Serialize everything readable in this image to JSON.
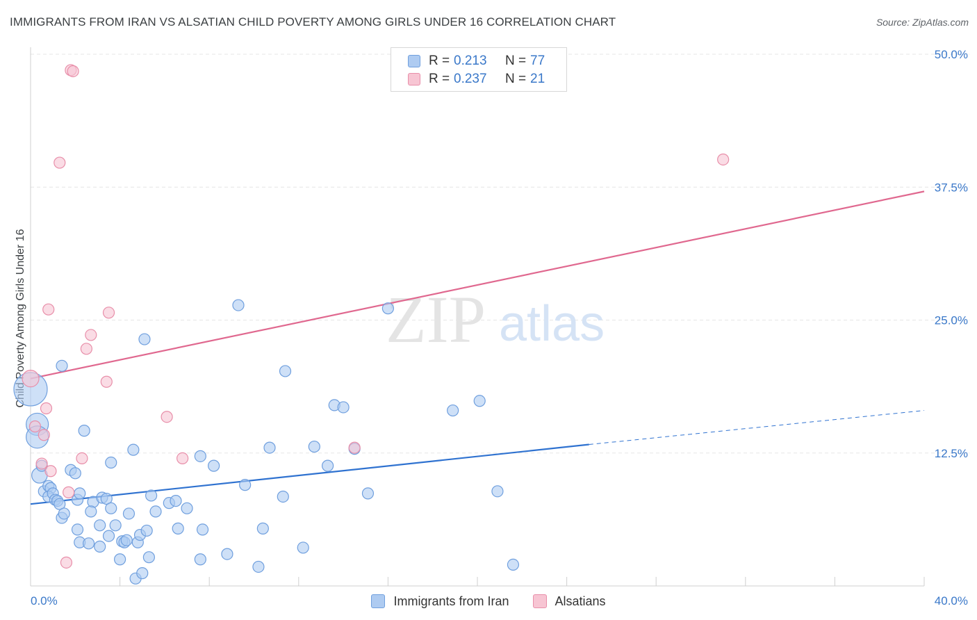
{
  "title": "IMMIGRANTS FROM IRAN VS ALSATIAN CHILD POVERTY AMONG GIRLS UNDER 16 CORRELATION CHART",
  "source": "Source: ZipAtlas.com",
  "watermark": {
    "zip": "ZIP",
    "atlas": "atlas"
  },
  "legend": {
    "rows": [
      {
        "r_label": "R =",
        "r_value": "0.213",
        "n_label": "N =",
        "n_value": "77",
        "color": "#aecbf1",
        "border": "#6f9fde"
      },
      {
        "r_label": "R =",
        "r_value": "0.237",
        "n_label": "N =",
        "n_value": "21",
        "color": "#f7c5d3",
        "border": "#e88ea9"
      }
    ]
  },
  "bottom_legend": [
    {
      "label": "Immigrants from Iran",
      "color": "#aecbf1",
      "border": "#6f9fde"
    },
    {
      "label": "Alsatians",
      "color": "#f7c5d3",
      "border": "#e88ea9"
    }
  ],
  "chart_data": {
    "type": "scatter",
    "title": "IMMIGRANTS FROM IRAN VS ALSATIAN CHILD POVERTY AMONG GIRLS UNDER 16 CORRELATION CHART",
    "xlabel": "",
    "ylabel": "Child Poverty Among Girls Under 16",
    "xlim": [
      0,
      40
    ],
    "ylim": [
      0,
      50
    ],
    "x_tick_labels": [
      {
        "value": 0,
        "label": "0.0%"
      },
      {
        "value": 40,
        "label": "40.0%"
      }
    ],
    "y_tick_labels": [
      {
        "value": 12.5,
        "label": "12.5%"
      },
      {
        "value": 25,
        "label": "25.0%"
      },
      {
        "value": 37.5,
        "label": "37.5%"
      },
      {
        "value": 50,
        "label": "50.0%"
      }
    ],
    "grid": true,
    "legend_position": "top-center",
    "series": [
      {
        "name": "Immigrants from Iran",
        "color": "#6f9fde",
        "fill": "#aecbf1",
        "line_color": "#2f72d0",
        "trend": {
          "x0": 0,
          "y0": 7.7,
          "x1": 25.0,
          "y1": 13.3,
          "dashed_to": {
            "x": 40.0,
            "y": 16.5
          }
        },
        "points": [
          [
            0.0,
            18.5,
            3
          ],
          [
            0.3,
            15.2,
            2
          ],
          [
            0.3,
            14.0,
            2
          ],
          [
            0.4,
            10.4,
            1.4
          ],
          [
            0.5,
            11.3,
            1
          ],
          [
            0.6,
            8.9,
            1
          ],
          [
            0.8,
            9.4,
            1
          ],
          [
            0.9,
            9.2,
            1
          ],
          [
            0.8,
            8.4,
            1
          ],
          [
            1.0,
            8.7,
            1
          ],
          [
            1.1,
            8.1,
            1
          ],
          [
            1.2,
            8.0,
            1
          ],
          [
            1.3,
            7.7,
            1
          ],
          [
            1.4,
            6.4,
            1
          ],
          [
            1.5,
            6.8,
            1
          ],
          [
            1.4,
            20.7,
            1
          ],
          [
            1.8,
            10.9,
            1
          ],
          [
            2.0,
            10.6,
            1
          ],
          [
            2.1,
            8.1,
            1
          ],
          [
            2.2,
            8.7,
            1
          ],
          [
            2.4,
            14.6,
            1
          ],
          [
            2.1,
            5.3,
            1
          ],
          [
            2.2,
            4.1,
            1
          ],
          [
            2.6,
            4.0,
            1
          ],
          [
            2.8,
            7.9,
            1
          ],
          [
            2.7,
            7.0,
            1
          ],
          [
            3.1,
            3.7,
            1
          ],
          [
            3.1,
            5.7,
            1
          ],
          [
            3.2,
            8.3,
            1
          ],
          [
            3.4,
            8.2,
            1
          ],
          [
            3.5,
            4.7,
            1
          ],
          [
            3.6,
            11.6,
            1
          ],
          [
            3.6,
            7.3,
            1
          ],
          [
            3.8,
            5.7,
            1
          ],
          [
            4.0,
            2.5,
            1
          ],
          [
            4.1,
            4.2,
            1
          ],
          [
            4.2,
            4.1,
            1
          ],
          [
            4.3,
            4.3,
            1
          ],
          [
            4.4,
            6.8,
            1
          ],
          [
            4.6,
            12.8,
            1
          ],
          [
            4.7,
            0.7,
            1
          ],
          [
            4.8,
            4.1,
            1
          ],
          [
            4.9,
            4.8,
            1
          ],
          [
            5.0,
            1.2,
            1
          ],
          [
            5.1,
            23.2,
            1
          ],
          [
            5.2,
            5.2,
            1
          ],
          [
            5.3,
            2.7,
            1
          ],
          [
            5.4,
            8.5,
            1
          ],
          [
            5.6,
            7.0,
            1
          ],
          [
            6.2,
            7.8,
            1
          ],
          [
            6.5,
            8.0,
            1
          ],
          [
            6.6,
            5.4,
            1
          ],
          [
            7.0,
            7.3,
            1
          ],
          [
            7.6,
            12.2,
            1
          ],
          [
            7.7,
            5.3,
            1
          ],
          [
            7.6,
            2.5,
            1
          ],
          [
            8.2,
            11.3,
            1
          ],
          [
            8.8,
            3.0,
            1
          ],
          [
            9.3,
            26.4,
            1
          ],
          [
            9.6,
            9.5,
            1
          ],
          [
            10.2,
            1.8,
            1
          ],
          [
            10.4,
            5.4,
            1
          ],
          [
            10.7,
            13.0,
            1
          ],
          [
            11.3,
            8.4,
            1
          ],
          [
            11.4,
            20.2,
            1
          ],
          [
            12.2,
            3.6,
            1
          ],
          [
            12.7,
            13.1,
            1
          ],
          [
            13.3,
            11.3,
            1
          ],
          [
            13.6,
            17.0,
            1
          ],
          [
            14.0,
            16.8,
            1
          ],
          [
            14.5,
            12.9,
            1
          ],
          [
            15.1,
            8.7,
            1
          ],
          [
            16.0,
            26.1,
            1
          ],
          [
            18.9,
            16.5,
            1
          ],
          [
            20.1,
            17.4,
            1
          ],
          [
            20.9,
            8.9,
            1
          ],
          [
            21.6,
            2.0,
            1
          ]
        ]
      },
      {
        "name": "Alsatians",
        "color": "#e88ea9",
        "fill": "#f7c5d3",
        "line_color": "#e0688f",
        "trend": {
          "x0": 0,
          "y0": 19.5,
          "x1": 40.0,
          "y1": 37.1
        },
        "points": [
          [
            0.0,
            19.5,
            1.5
          ],
          [
            0.2,
            15.0,
            1
          ],
          [
            0.5,
            11.5,
            1
          ],
          [
            0.6,
            14.2,
            1
          ],
          [
            0.7,
            16.7,
            1
          ],
          [
            0.8,
            26.0,
            1
          ],
          [
            0.9,
            10.8,
            1
          ],
          [
            1.3,
            39.8,
            1
          ],
          [
            1.6,
            2.2,
            1
          ],
          [
            1.7,
            8.8,
            1
          ],
          [
            1.8,
            48.5,
            1
          ],
          [
            1.9,
            48.4,
            1
          ],
          [
            2.3,
            12.0,
            1
          ],
          [
            2.5,
            22.3,
            1
          ],
          [
            2.7,
            23.6,
            1
          ],
          [
            3.4,
            19.2,
            1
          ],
          [
            3.5,
            25.7,
            1
          ],
          [
            6.1,
            15.9,
            1
          ],
          [
            6.8,
            12.0,
            1
          ],
          [
            14.5,
            13.0,
            1
          ],
          [
            31.0,
            40.1,
            1
          ]
        ]
      }
    ]
  }
}
